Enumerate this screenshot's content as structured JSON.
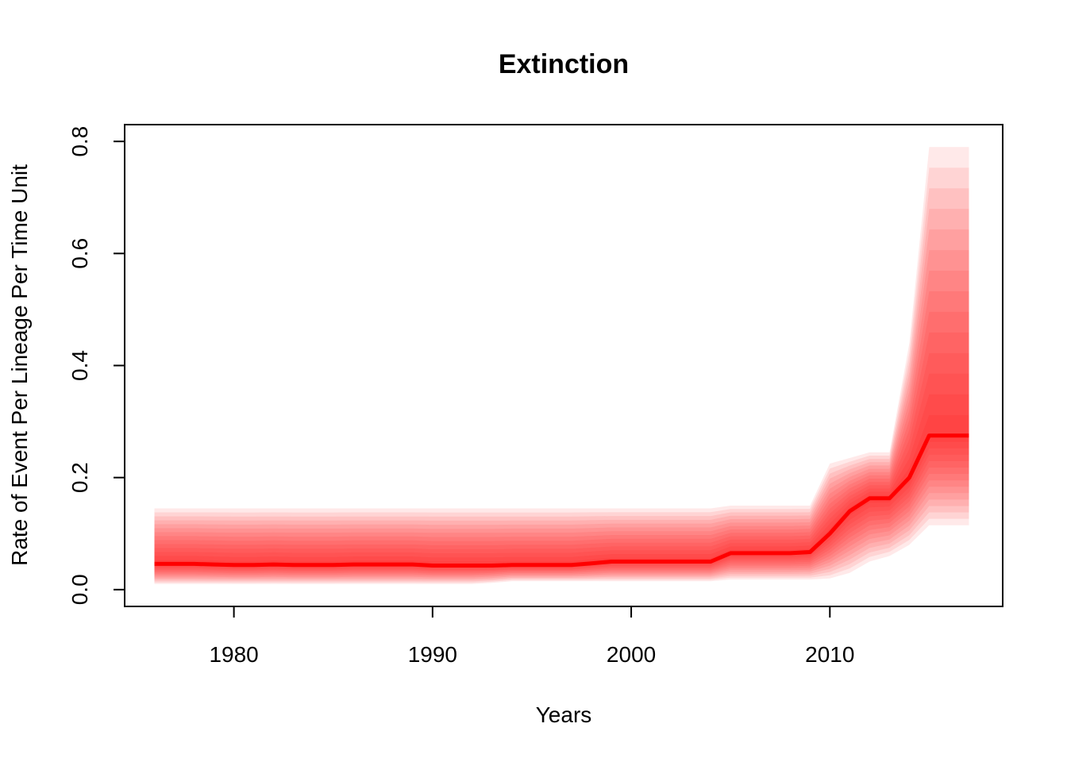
{
  "chart_data": {
    "type": "line",
    "title": "Extinction",
    "xlabel": "Years",
    "ylabel": "Rate of Event Per Lineage Per Time Unit",
    "xlim": [
      1974.5,
      2018.7
    ],
    "ylim": [
      -0.03,
      0.83
    ],
    "x_ticks": [
      1980,
      1990,
      2000,
      2010
    ],
    "x_tick_labels": [
      "1980",
      "1990",
      "2000",
      "2010"
    ],
    "y_ticks": [
      0.0,
      0.2,
      0.4,
      0.6,
      0.8
    ],
    "y_tick_labels": [
      "0.0",
      "0.2",
      "0.4",
      "0.6",
      "0.8"
    ],
    "grid": false,
    "line_color": "#ff0000",
    "band_color": "#ff0000",
    "series": [
      {
        "x": [
          1976,
          1977,
          1978,
          1979,
          1980,
          1981,
          1982,
          1983,
          1984,
          1985,
          1986,
          1987,
          1988,
          1989,
          1990,
          1991,
          1992,
          1993,
          1994,
          1995,
          1996,
          1997,
          1998,
          1999,
          2000,
          2001,
          2002,
          2003,
          2004,
          2005,
          2006,
          2007,
          2008,
          2009,
          2010,
          2011,
          2012,
          2013,
          2014,
          2015,
          2016,
          2017
        ],
        "median": [
          0.046,
          0.046,
          0.046,
          0.045,
          0.044,
          0.044,
          0.045,
          0.044,
          0.044,
          0.044,
          0.045,
          0.045,
          0.045,
          0.045,
          0.043,
          0.043,
          0.043,
          0.043,
          0.044,
          0.044,
          0.044,
          0.044,
          0.047,
          0.05,
          0.05,
          0.05,
          0.05,
          0.05,
          0.05,
          0.065,
          0.065,
          0.065,
          0.065,
          0.067,
          0.1,
          0.14,
          0.163,
          0.163,
          0.2,
          0.275,
          0.275,
          0.275
        ],
        "lower": [
          0.01,
          0.01,
          0.01,
          0.01,
          0.01,
          0.01,
          0.01,
          0.01,
          0.01,
          0.01,
          0.01,
          0.01,
          0.01,
          0.01,
          0.01,
          0.01,
          0.01,
          0.012,
          0.015,
          0.015,
          0.015,
          0.015,
          0.015,
          0.015,
          0.015,
          0.015,
          0.015,
          0.015,
          0.015,
          0.018,
          0.018,
          0.018,
          0.018,
          0.018,
          0.02,
          0.03,
          0.05,
          0.06,
          0.08,
          0.115,
          0.115,
          0.115
        ],
        "upper": [
          0.145,
          0.145,
          0.145,
          0.145,
          0.145,
          0.145,
          0.145,
          0.145,
          0.145,
          0.145,
          0.145,
          0.145,
          0.145,
          0.145,
          0.145,
          0.145,
          0.145,
          0.145,
          0.145,
          0.145,
          0.145,
          0.145,
          0.145,
          0.145,
          0.145,
          0.145,
          0.145,
          0.145,
          0.145,
          0.15,
          0.15,
          0.15,
          0.15,
          0.15,
          0.225,
          0.235,
          0.245,
          0.245,
          0.44,
          0.79,
          0.79,
          0.79
        ]
      }
    ]
  }
}
